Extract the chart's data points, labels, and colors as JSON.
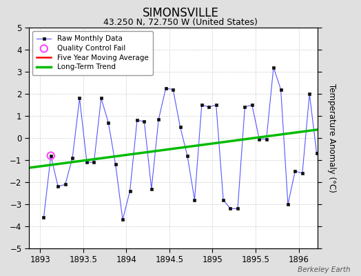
{
  "title": "SIMONSVILLE",
  "subtitle": "43.250 N, 72.750 W (United States)",
  "ylabel": "Temperature Anomaly (°C)",
  "watermark": "Berkeley Earth",
  "xlim": [
    1892.87,
    1896.22
  ],
  "ylim": [
    -5,
    5
  ],
  "xticks": [
    1893,
    1893.5,
    1894,
    1894.5,
    1895,
    1895.5,
    1896
  ],
  "yticks": [
    -5,
    -4,
    -3,
    -2,
    -1,
    0,
    1,
    2,
    3,
    4,
    5
  ],
  "background_color": "#e0e0e0",
  "plot_bg_color": "#ffffff",
  "raw_x": [
    1893.042,
    1893.125,
    1893.208,
    1893.292,
    1893.375,
    1893.458,
    1893.542,
    1893.625,
    1893.708,
    1893.792,
    1893.875,
    1893.958,
    1894.042,
    1894.125,
    1894.208,
    1894.292,
    1894.375,
    1894.458,
    1894.542,
    1894.625,
    1894.708,
    1894.792,
    1894.875,
    1894.958,
    1895.042,
    1895.125,
    1895.208,
    1895.292,
    1895.375,
    1895.458,
    1895.542,
    1895.625,
    1895.708,
    1895.792,
    1895.875,
    1895.958,
    1896.042,
    1896.125,
    1896.208
  ],
  "raw_y": [
    -3.6,
    -0.8,
    -2.2,
    -2.1,
    -0.9,
    1.8,
    -1.1,
    -1.1,
    1.8,
    0.7,
    -1.2,
    -3.7,
    -2.4,
    0.8,
    0.75,
    -2.3,
    0.85,
    2.25,
    2.2,
    0.5,
    -0.8,
    -2.8,
    1.5,
    1.4,
    1.5,
    -2.8,
    -3.2,
    -3.2,
    1.4,
    1.5,
    -0.05,
    -0.05,
    3.2,
    2.2,
    -3.0,
    -1.5,
    -1.6,
    2.0,
    -0.7
  ],
  "qc_fail_x": [
    1893.125
  ],
  "qc_fail_y": [
    -0.8
  ],
  "trend_x": [
    1892.87,
    1896.22
  ],
  "trend_y": [
    -1.35,
    0.38
  ],
  "raw_line_color": "#5555ff",
  "raw_marker_color": "#111111",
  "qc_color": "#ff44ff",
  "trend_color": "#00bb00",
  "moving_avg_color": "#ff0000",
  "legend_loc": "upper left",
  "title_fontsize": 12,
  "subtitle_fontsize": 9,
  "tick_fontsize": 8.5,
  "ylabel_fontsize": 8.5,
  "legend_fontsize": 7.5
}
